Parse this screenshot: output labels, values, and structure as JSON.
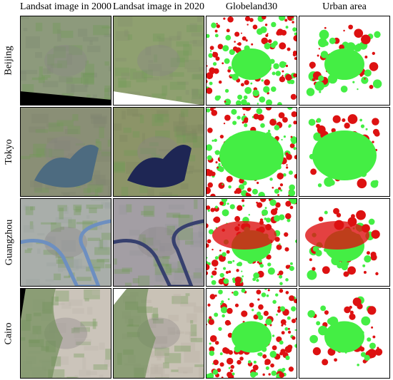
{
  "columns": [
    "Landsat image in 2000",
    "Landsat image in 2020",
    "Globeland30",
    "Urban area"
  ],
  "rows": [
    "Beijing",
    "Tokyo",
    "Guangzhou",
    "Cairo"
  ]
}
